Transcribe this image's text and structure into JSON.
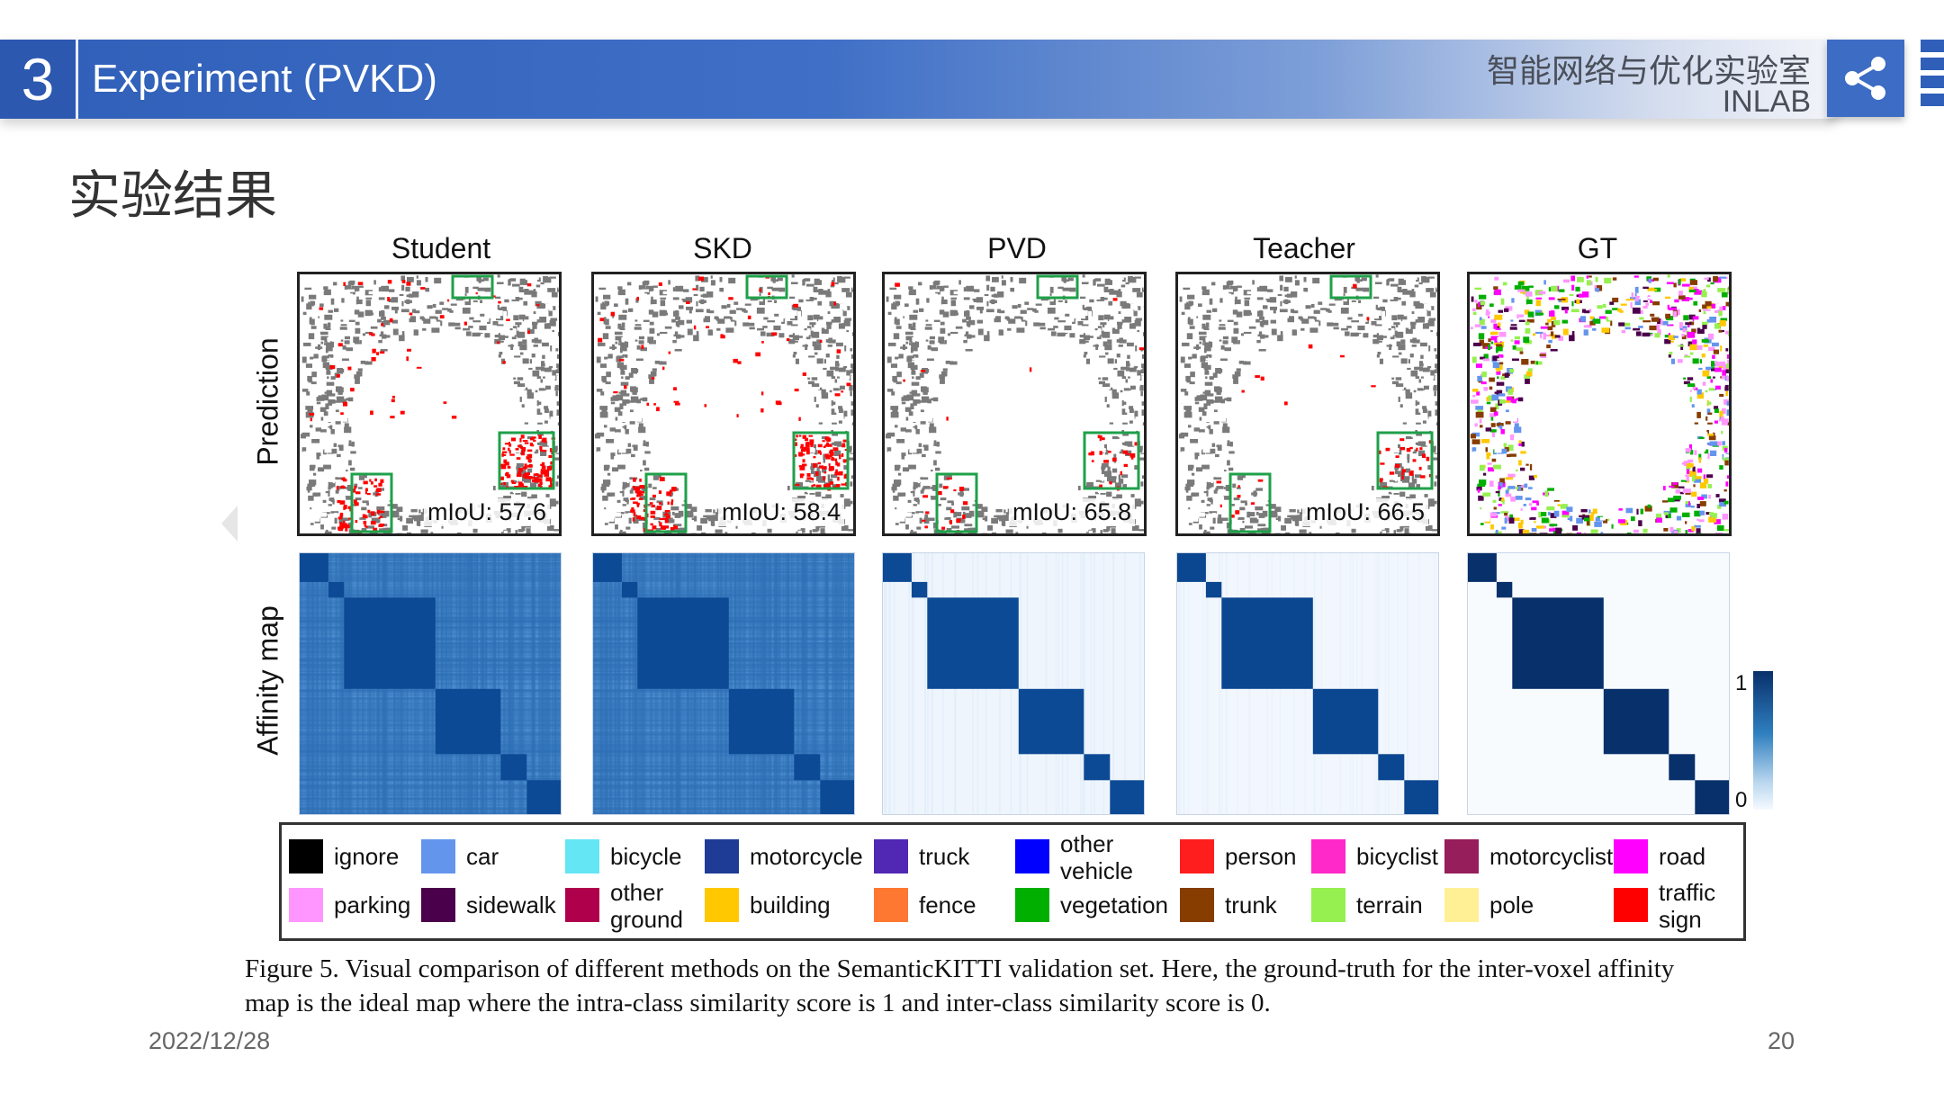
{
  "header": {
    "section_number": "3",
    "title": "Experiment (PVKD)",
    "lab_name": "智能网络与优化实验室",
    "lab_abbr": "INLAB",
    "share_icon": "share-icon"
  },
  "section_title": "实验结果",
  "figure": {
    "columns": [
      "Student",
      "SKD",
      "PVD",
      "Teacher",
      "GT"
    ],
    "row_labels": [
      "Prediction",
      "Affinity map"
    ],
    "miou": [
      "mIoU: 57.6",
      "mIoU: 58.4",
      "mIoU: 65.8",
      "mIoU: 66.5"
    ],
    "colorbar": {
      "max_label": "1",
      "min_label": "0"
    },
    "legend_row1": [
      {
        "label": "ignore",
        "color": "#000000"
      },
      {
        "label": "car",
        "color": "#6495ed"
      },
      {
        "label": "bicycle",
        "color": "#64e6f5"
      },
      {
        "label": "motorcycle",
        "color": "#1e3c96"
      },
      {
        "label": "truck",
        "color": "#5028b4"
      },
      {
        "label": "other vehicle",
        "color": "#0000ff"
      },
      {
        "label": "person",
        "color": "#ff1e1e"
      },
      {
        "label": "bicyclist",
        "color": "#ff28c8"
      },
      {
        "label": "motorcyclist",
        "color": "#961e5a"
      },
      {
        "label": "road",
        "color": "#ff00ff"
      }
    ],
    "legend_row2": [
      {
        "label": "parking",
        "color": "#ff96ff"
      },
      {
        "label": "sidewalk",
        "color": "#4b004b"
      },
      {
        "label": "other ground",
        "color": "#af004b"
      },
      {
        "label": "building",
        "color": "#ffc800"
      },
      {
        "label": "fence",
        "color": "#ff7832"
      },
      {
        "label": "vegetation",
        "color": "#00af00"
      },
      {
        "label": "trunk",
        "color": "#873c00"
      },
      {
        "label": "terrain",
        "color": "#96f050"
      },
      {
        "label": "pole",
        "color": "#fff096"
      },
      {
        "label": "traffic sign",
        "color": "#ff0000"
      }
    ],
    "caption_line1": "Figure 5. Visual comparison of different methods on the SemanticKITTI validation set. Here, the ground-truth for the inter-voxel affinity",
    "caption_line2": "map is the ideal map where the intra-class similarity score is 1 and inter-class similarity score is 0."
  },
  "footer": {
    "date": "2022/12/28",
    "page": "20"
  }
}
